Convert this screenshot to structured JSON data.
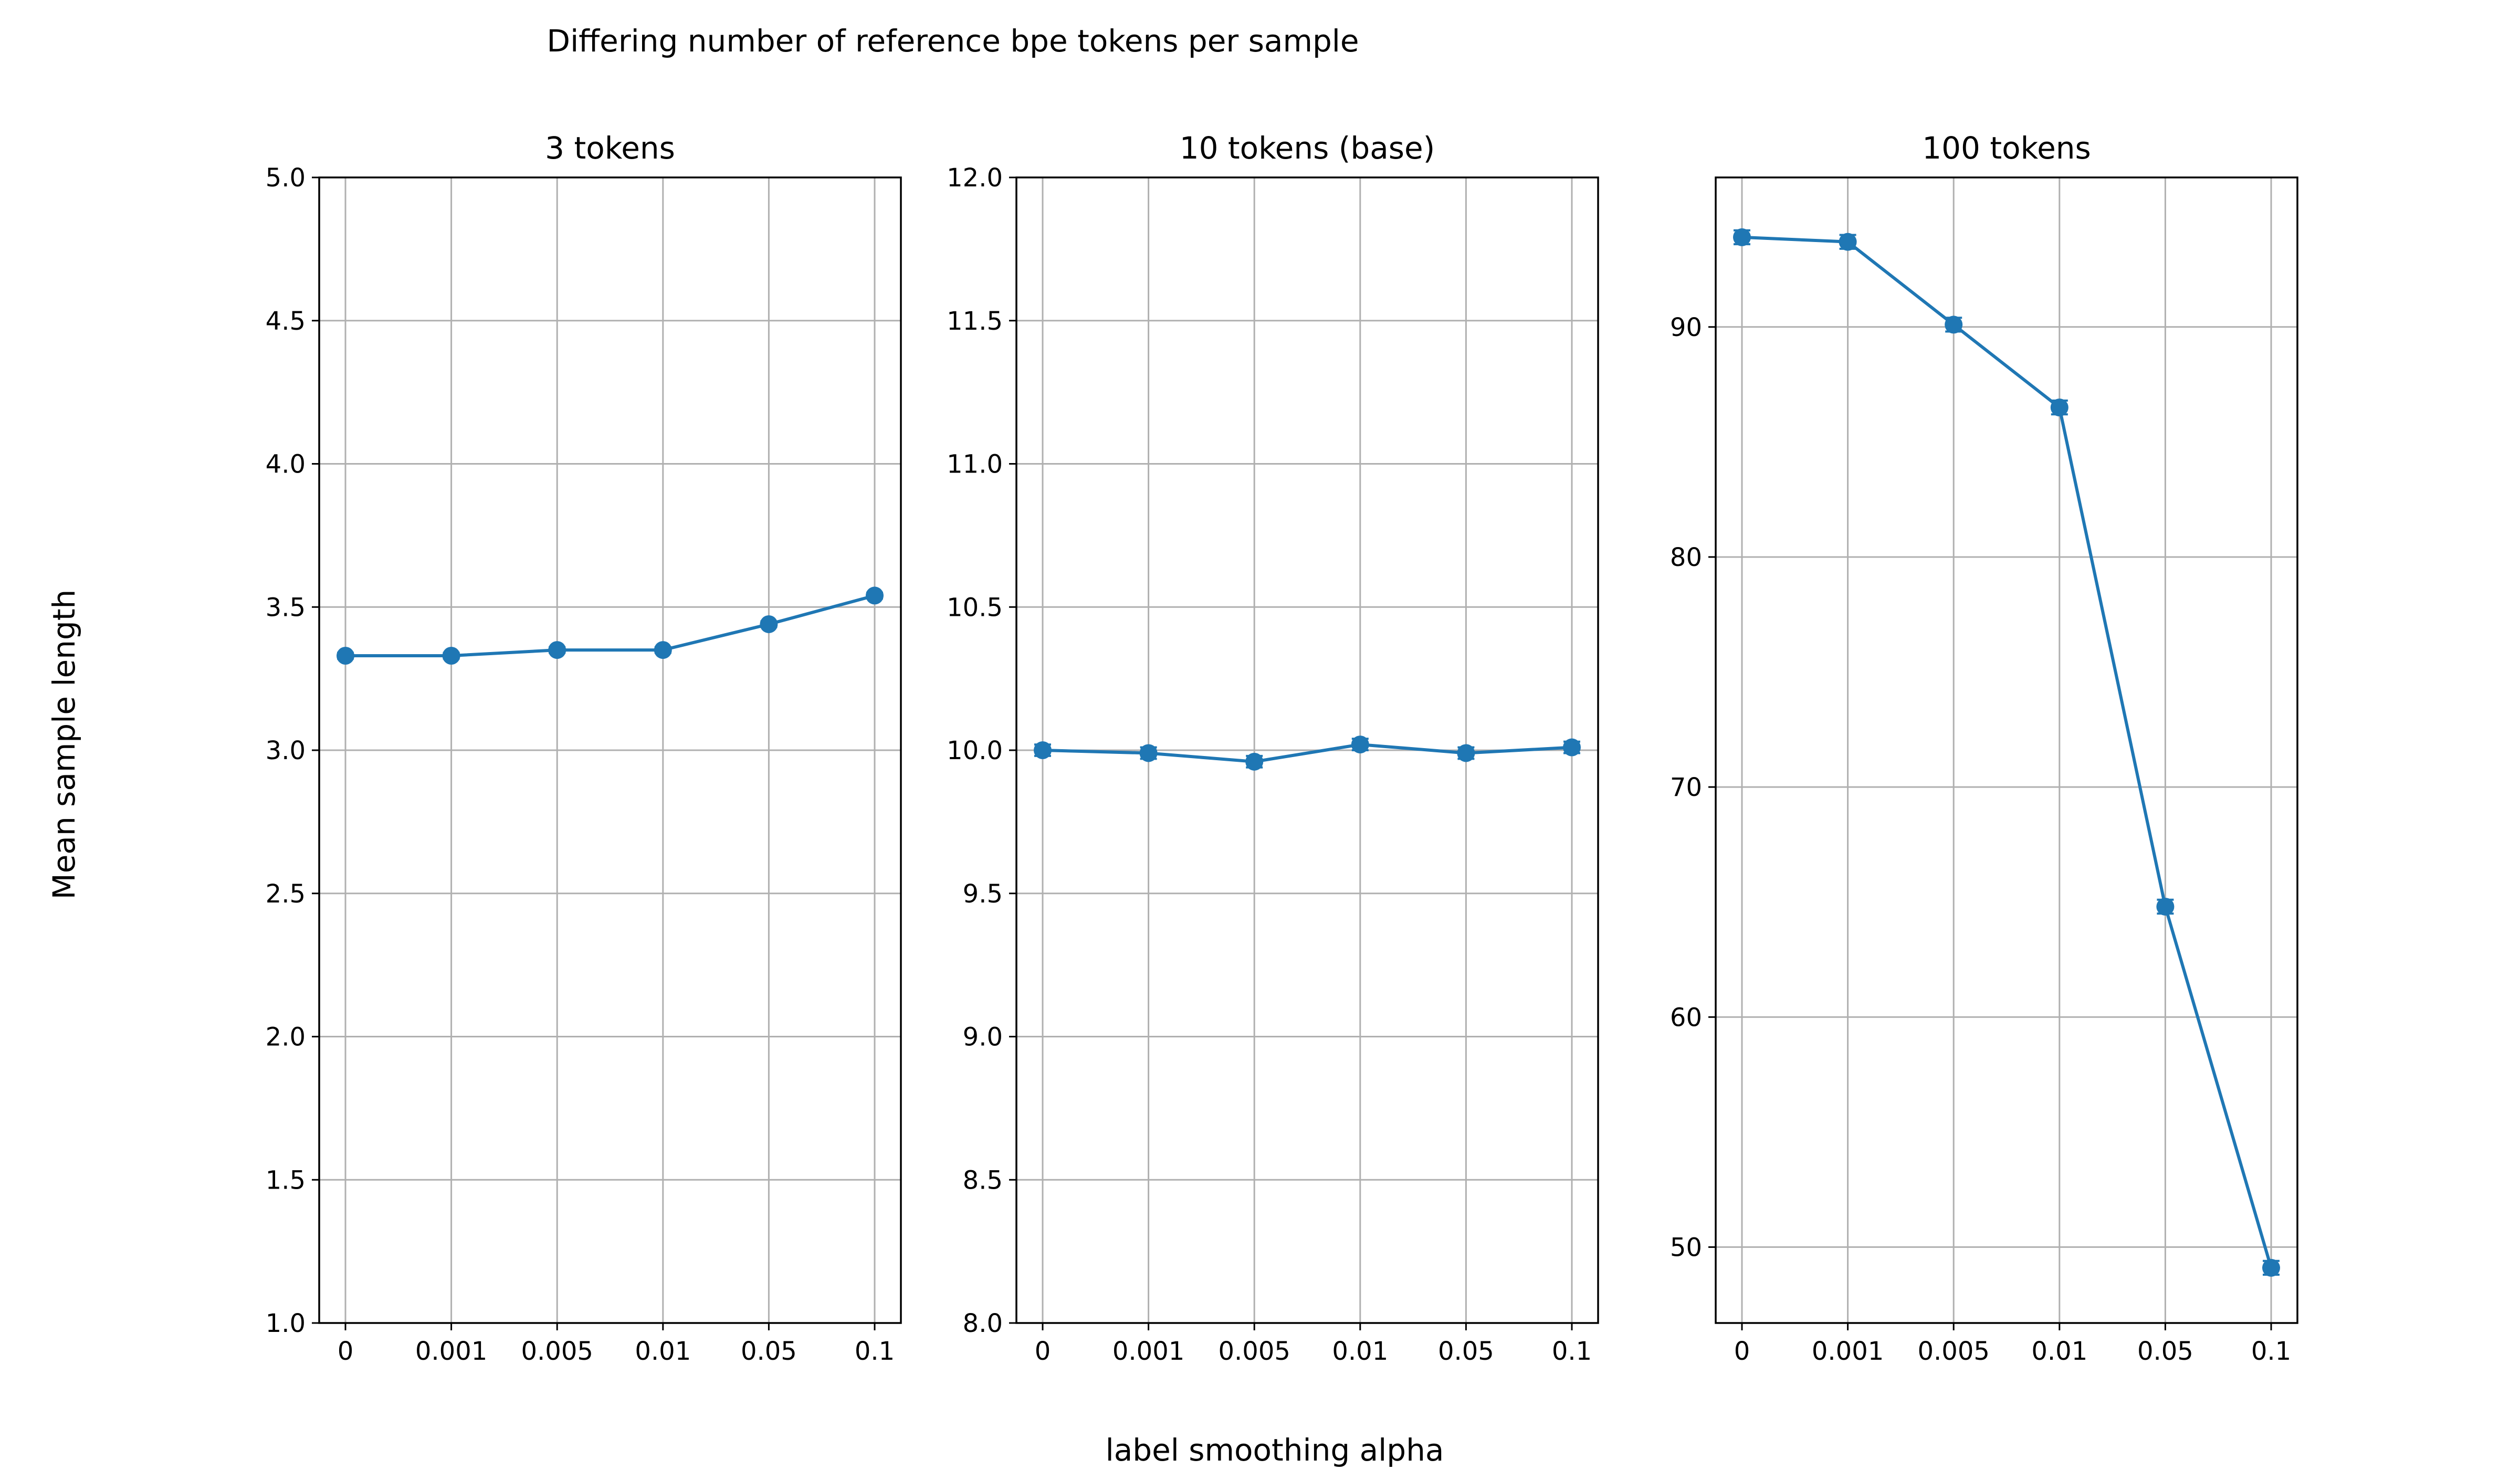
{
  "chart_data": {
    "type": "line",
    "title": "Differing number of reference bpe tokens per sample",
    "xlabel": "label smoothing alpha",
    "ylabel": "Mean sample length",
    "series_color": "#1f77b4",
    "grid": true,
    "categories": [
      "0",
      "0.001",
      "0.005",
      "0.01",
      "0.05",
      "0.1"
    ],
    "panels": [
      {
        "title": "3 tokens",
        "ylim": [
          1.0,
          5.0
        ],
        "yticks": [
          1.0,
          1.5,
          2.0,
          2.5,
          3.0,
          3.5,
          4.0,
          4.5,
          5.0
        ],
        "ytick_labels": [
          "1.0",
          "1.5",
          "2.0",
          "2.5",
          "3.0",
          "3.5",
          "4.0",
          "4.5",
          "5.0"
        ],
        "values": [
          3.33,
          3.33,
          3.35,
          3.35,
          3.44,
          3.54
        ],
        "errors": [
          0.01,
          0.01,
          0.01,
          0.01,
          0.01,
          0.01
        ]
      },
      {
        "title": "10 tokens (base)",
        "ylim": [
          8.0,
          12.0
        ],
        "yticks": [
          8.0,
          8.5,
          9.0,
          9.5,
          10.0,
          10.5,
          11.0,
          11.5,
          12.0
        ],
        "ytick_labels": [
          "8.0",
          "8.5",
          "9.0",
          "9.5",
          "10.0",
          "10.5",
          "11.0",
          "11.5",
          "12.0"
        ],
        "values": [
          10.0,
          9.99,
          9.96,
          10.02,
          9.99,
          10.01
        ],
        "errors": [
          0.02,
          0.02,
          0.02,
          0.02,
          0.02,
          0.02
        ]
      },
      {
        "title": "100 tokens",
        "ylim": [
          46.7,
          96.5
        ],
        "yticks": [
          50,
          60,
          70,
          80,
          90
        ],
        "ytick_labels": [
          "50",
          "60",
          "70",
          "80",
          "90"
        ],
        "values": [
          93.9,
          93.7,
          90.1,
          86.5,
          64.8,
          49.1
        ],
        "errors": [
          0.3,
          0.3,
          0.3,
          0.3,
          0.3,
          0.3
        ]
      }
    ]
  }
}
